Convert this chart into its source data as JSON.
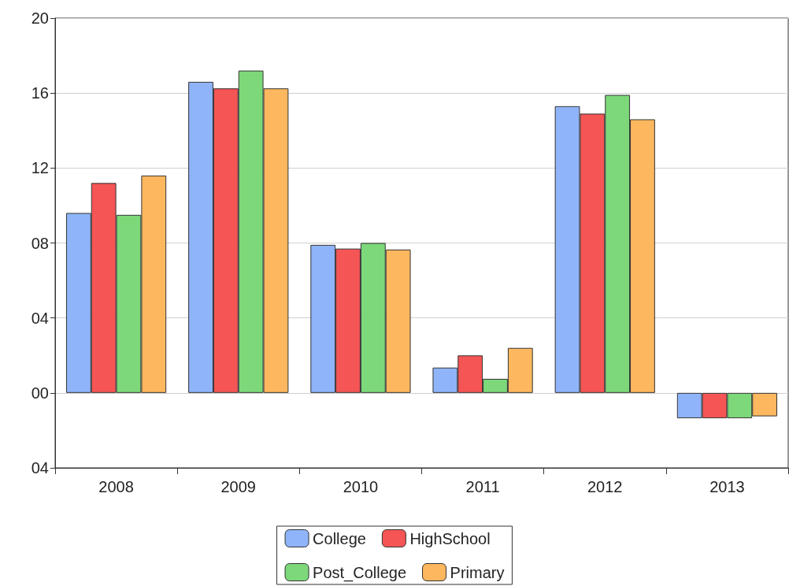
{
  "chart_data": {
    "type": "bar",
    "categories": [
      "2008",
      "2009",
      "2010",
      "2011",
      "2012",
      "2013"
    ],
    "series": [
      {
        "name": "College",
        "color": "#8fb4f9",
        "values": [
          9.6,
          16.6,
          7.9,
          1.35,
          15.3,
          -1.35
        ]
      },
      {
        "name": "HighSchool",
        "color": "#f55555",
        "values": [
          11.2,
          16.25,
          7.7,
          2.0,
          14.9,
          -1.35
        ]
      },
      {
        "name": "Post_College",
        "color": "#7dd87a",
        "values": [
          9.5,
          17.2,
          8.0,
          0.75,
          15.9,
          -1.35
        ]
      },
      {
        "name": "Primary",
        "color": "#fdb75e",
        "values": [
          11.6,
          16.25,
          7.65,
          2.4,
          14.6,
          -1.25
        ]
      }
    ],
    "ylim": [
      -4,
      20
    ],
    "yticks": [
      20,
      16,
      12,
      {
        "value": 8,
        "label": "08"
      },
      {
        "value": 4,
        "label": "04"
      },
      {
        "value": 0,
        "label": "00"
      },
      {
        "value": -4,
        "label": "04"
      }
    ],
    "grid": "y",
    "legend": "bottom"
  }
}
